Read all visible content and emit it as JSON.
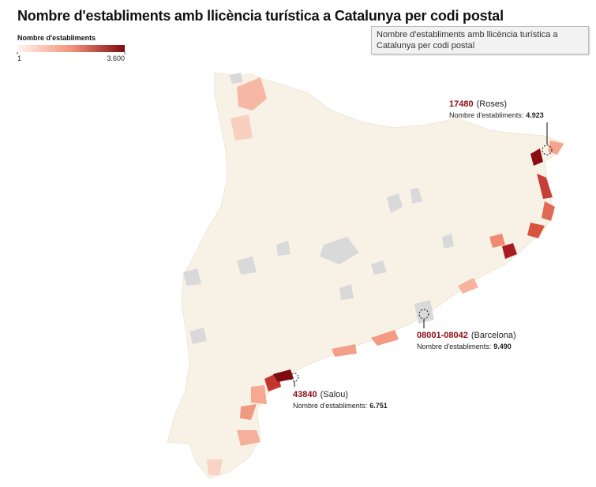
{
  "title": "Nombre d'establiments amb llicència turística a Catalunya per codi postal",
  "legend": {
    "title": "Nombre d'establiments",
    "min": {
      "value": 1,
      "label": "1"
    },
    "max": {
      "value": 3600,
      "label": "3.600"
    }
  },
  "tooltip": "Nombre d'establiments amb llicència turística a Catalunya per codi postal",
  "annotations": [
    {
      "code": "17480",
      "place": "(Roses)",
      "label": "Nombre d'establiments:",
      "value": "4.923"
    },
    {
      "code": "08001-08042",
      "place": "(Barcelona)",
      "label": "Nombre d'establiments:",
      "value": "9.490"
    },
    {
      "code": "43840",
      "place": "(Salou)",
      "label": "Nombre d'establiments:",
      "value": "6.751"
    }
  ]
}
